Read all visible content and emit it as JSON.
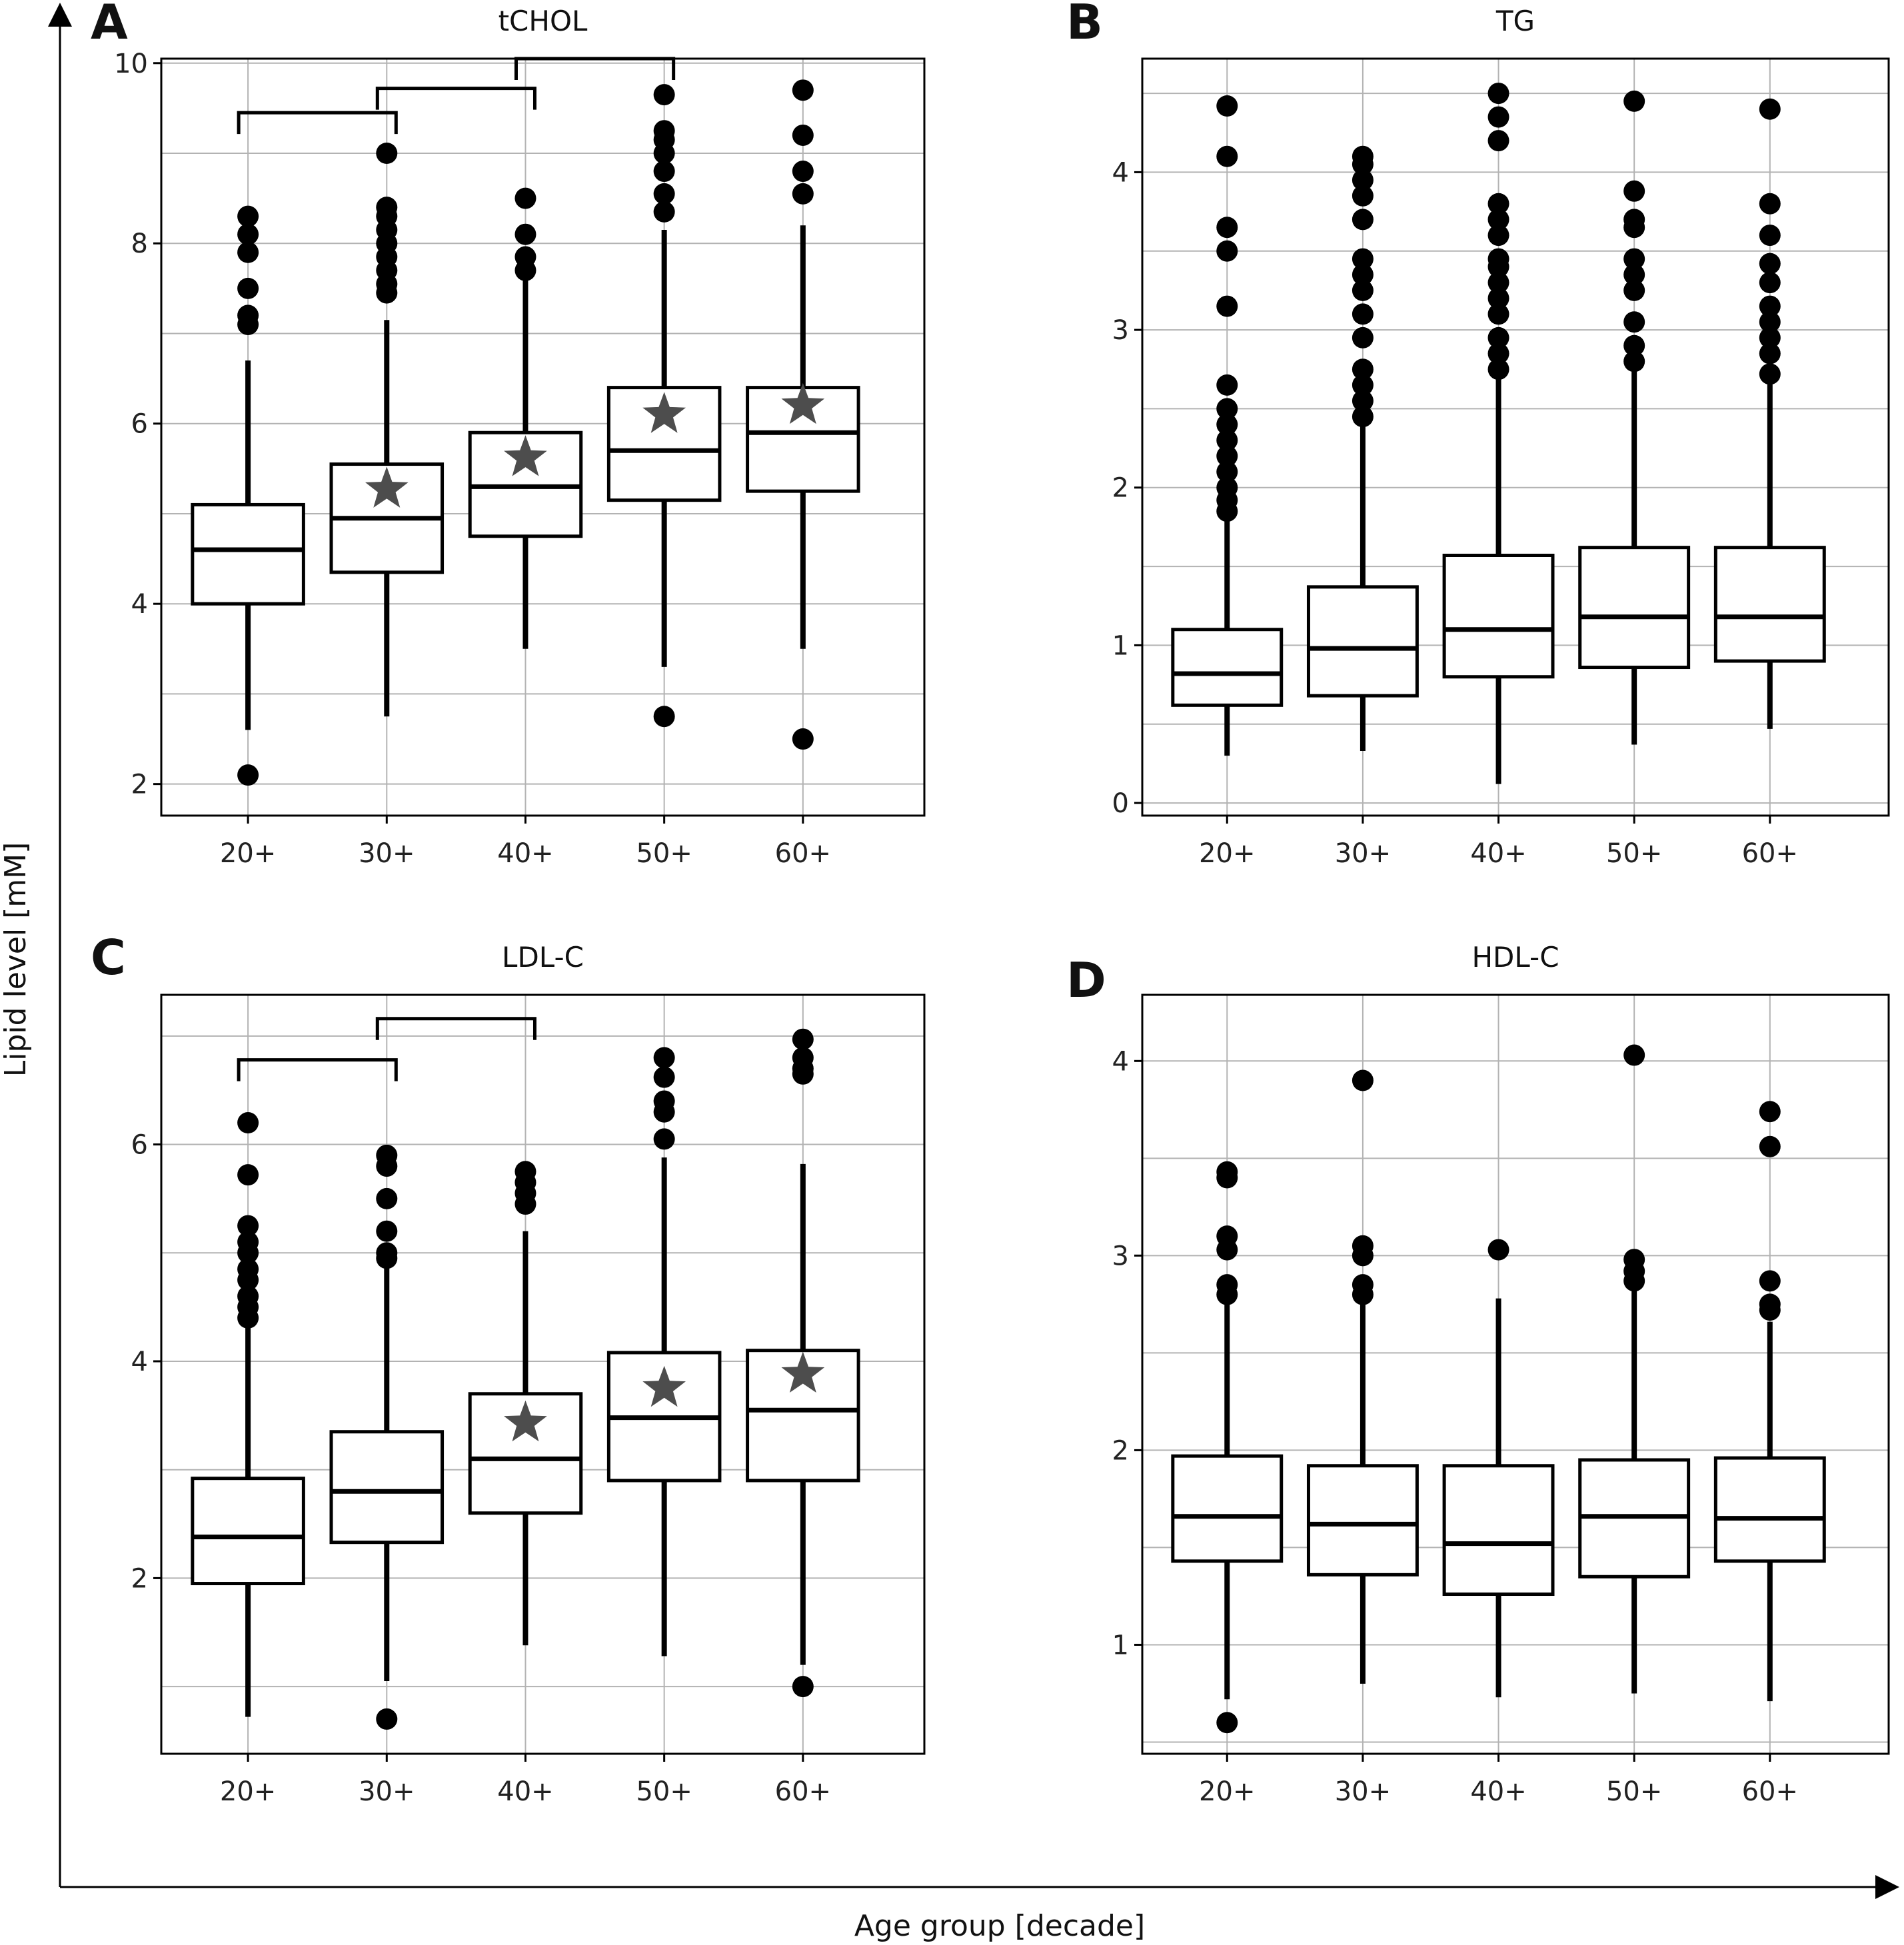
{
  "figure": {
    "xlabel": "Age group [decade]",
    "ylabel": "Lipid level [mM]"
  },
  "chart_data": [
    {
      "type": "box",
      "panel": "A",
      "title": "tCHOL",
      "categories": [
        "20+",
        "30+",
        "40+",
        "50+",
        "60+"
      ],
      "ylim": [
        1.65,
        10.05
      ],
      "yticks": [
        2,
        4,
        6,
        8,
        10
      ],
      "grid": true,
      "boxes": [
        {
          "q1": 4.0,
          "median": 4.6,
          "q3": 5.1,
          "whisker_low": 2.6,
          "whisker_high": 6.7,
          "mean": null,
          "outliers": [
            2.1,
            7.1,
            7.2,
            7.5,
            7.9,
            8.1,
            8.3
          ]
        },
        {
          "q1": 4.35,
          "median": 4.95,
          "q3": 5.55,
          "whisker_low": 2.75,
          "whisker_high": 7.15,
          "mean": 5.27,
          "outliers": [
            7.45,
            7.55,
            7.7,
            7.85,
            8.0,
            8.15,
            8.3,
            8.4,
            9.0
          ]
        },
        {
          "q1": 4.75,
          "median": 5.3,
          "q3": 5.9,
          "whisker_low": 3.5,
          "whisker_high": 7.6,
          "mean": 5.62,
          "outliers": [
            7.7,
            7.85,
            8.1,
            8.5
          ]
        },
        {
          "q1": 5.15,
          "median": 5.7,
          "q3": 6.4,
          "whisker_low": 3.3,
          "whisker_high": 8.15,
          "mean": 6.1,
          "outliers": [
            2.75,
            8.35,
            8.55,
            8.8,
            9.0,
            9.15,
            9.25,
            9.65
          ]
        },
        {
          "q1": 5.25,
          "median": 5.9,
          "q3": 6.4,
          "whisker_low": 3.5,
          "whisker_high": 8.2,
          "mean": 6.2,
          "outliers": [
            2.5,
            8.55,
            8.8,
            9.2,
            9.7
          ]
        }
      ],
      "brackets": [
        {
          "from": 0,
          "to": 1,
          "y": 9.45
        },
        {
          "from": 1,
          "to": 2,
          "y": 9.72
        },
        {
          "from": 2,
          "to": 3,
          "y": 10.05
        }
      ]
    },
    {
      "type": "box",
      "panel": "B",
      "title": "TG",
      "categories": [
        "20+",
        "30+",
        "40+",
        "50+",
        "60+"
      ],
      "ylim": [
        -0.08,
        4.72
      ],
      "yticks": [
        0,
        1,
        2,
        3,
        4
      ],
      "grid": true,
      "boxes": [
        {
          "q1": 0.62,
          "median": 0.82,
          "q3": 1.1,
          "whisker_low": 0.3,
          "whisker_high": 1.8,
          "mean": null,
          "outliers": [
            1.85,
            1.92,
            2.0,
            2.1,
            2.2,
            2.3,
            2.4,
            2.5,
            2.65,
            3.15,
            3.5,
            3.65,
            4.1,
            4.42
          ]
        },
        {
          "q1": 0.68,
          "median": 0.98,
          "q3": 1.37,
          "whisker_low": 0.33,
          "whisker_high": 2.4,
          "mean": null,
          "outliers": [
            2.45,
            2.55,
            2.65,
            2.75,
            2.95,
            3.1,
            3.25,
            3.35,
            3.45,
            3.7,
            3.85,
            3.95,
            4.05,
            4.1
          ]
        },
        {
          "q1": 0.8,
          "median": 1.1,
          "q3": 1.57,
          "whisker_low": 0.12,
          "whisker_high": 2.7,
          "mean": null,
          "outliers": [
            2.75,
            2.85,
            2.95,
            3.1,
            3.2,
            3.3,
            3.4,
            3.45,
            3.6,
            3.7,
            3.8,
            4.2,
            4.35,
            4.5
          ]
        },
        {
          "q1": 0.86,
          "median": 1.18,
          "q3": 1.62,
          "whisker_low": 0.37,
          "whisker_high": 2.75,
          "mean": null,
          "outliers": [
            2.8,
            2.9,
            3.05,
            3.25,
            3.35,
            3.45,
            3.65,
            3.7,
            3.88,
            4.45
          ]
        },
        {
          "q1": 0.9,
          "median": 1.18,
          "q3": 1.62,
          "whisker_low": 0.47,
          "whisker_high": 2.68,
          "mean": null,
          "outliers": [
            2.72,
            2.85,
            2.95,
            3.05,
            3.15,
            3.3,
            3.42,
            3.6,
            3.8,
            4.4
          ]
        }
      ],
      "brackets": []
    },
    {
      "type": "box",
      "panel": "C",
      "title": "LDL-C",
      "categories": [
        "20+",
        "30+",
        "40+",
        "50+",
        "60+"
      ],
      "ylim": [
        0.38,
        7.38
      ],
      "yticks": [
        2,
        4,
        6
      ],
      "grid": true,
      "boxes": [
        {
          "q1": 1.95,
          "median": 2.38,
          "q3": 2.92,
          "whisker_low": 0.72,
          "whisker_high": 4.35,
          "mean": null,
          "outliers": [
            4.4,
            4.5,
            4.6,
            4.75,
            4.85,
            5.0,
            5.1,
            5.25,
            5.72,
            6.2
          ]
        },
        {
          "q1": 2.33,
          "median": 2.8,
          "q3": 3.35,
          "whisker_low": 1.05,
          "whisker_high": 4.9,
          "mean": null,
          "outliers": [
            0.7,
            4.95,
            5.0,
            5.2,
            5.5,
            5.8,
            5.9
          ]
        },
        {
          "q1": 2.6,
          "median": 3.1,
          "q3": 3.7,
          "whisker_low": 1.38,
          "whisker_high": 5.2,
          "mean": 3.43,
          "outliers": [
            5.45,
            5.55,
            5.65,
            5.75
          ]
        },
        {
          "q1": 2.9,
          "median": 3.48,
          "q3": 4.08,
          "whisker_low": 1.28,
          "whisker_high": 5.88,
          "mean": 3.75,
          "outliers": [
            6.05,
            6.3,
            6.4,
            6.62,
            6.8
          ]
        },
        {
          "q1": 2.9,
          "median": 3.55,
          "q3": 4.1,
          "whisker_low": 1.2,
          "whisker_high": 5.82,
          "mean": 3.88,
          "outliers": [
            1.0,
            6.65,
            6.7,
            6.8,
            6.97
          ]
        }
      ],
      "brackets": [
        {
          "from": 0,
          "to": 1,
          "y": 6.78
        },
        {
          "from": 1,
          "to": 2,
          "y": 7.16
        }
      ]
    },
    {
      "type": "box",
      "panel": "D",
      "title": "HDL-C",
      "categories": [
        "20+",
        "30+",
        "40+",
        "50+",
        "60+"
      ],
      "ylim": [
        0.44,
        4.34
      ],
      "yticks": [
        1,
        2,
        3,
        4
      ],
      "grid": true,
      "boxes": [
        {
          "q1": 1.43,
          "median": 1.66,
          "q3": 1.97,
          "whisker_low": 0.72,
          "whisker_high": 2.75,
          "mean": null,
          "outliers": [
            0.6,
            2.8,
            2.85,
            3.03,
            3.1,
            3.4,
            3.43
          ]
        },
        {
          "q1": 1.36,
          "median": 1.62,
          "q3": 1.92,
          "whisker_low": 0.8,
          "whisker_high": 2.75,
          "mean": null,
          "outliers": [
            2.8,
            2.85,
            3.0,
            3.05,
            3.9
          ]
        },
        {
          "q1": 1.26,
          "median": 1.52,
          "q3": 1.92,
          "whisker_low": 0.73,
          "whisker_high": 2.78,
          "mean": null,
          "outliers": [
            3.03
          ]
        },
        {
          "q1": 1.35,
          "median": 1.66,
          "q3": 1.95,
          "whisker_low": 0.75,
          "whisker_high": 2.82,
          "mean": null,
          "outliers": [
            2.87,
            2.92,
            2.98,
            4.03
          ]
        },
        {
          "q1": 1.43,
          "median": 1.65,
          "q3": 1.96,
          "whisker_low": 0.71,
          "whisker_high": 2.66,
          "mean": null,
          "outliers": [
            2.72,
            2.75,
            2.87,
            3.56,
            3.74
          ]
        }
      ],
      "brackets": []
    }
  ],
  "colors": {
    "line": "#000000",
    "grid": "#b3b3b3",
    "mean_star": "#4d4d4d",
    "text": "#111111"
  }
}
